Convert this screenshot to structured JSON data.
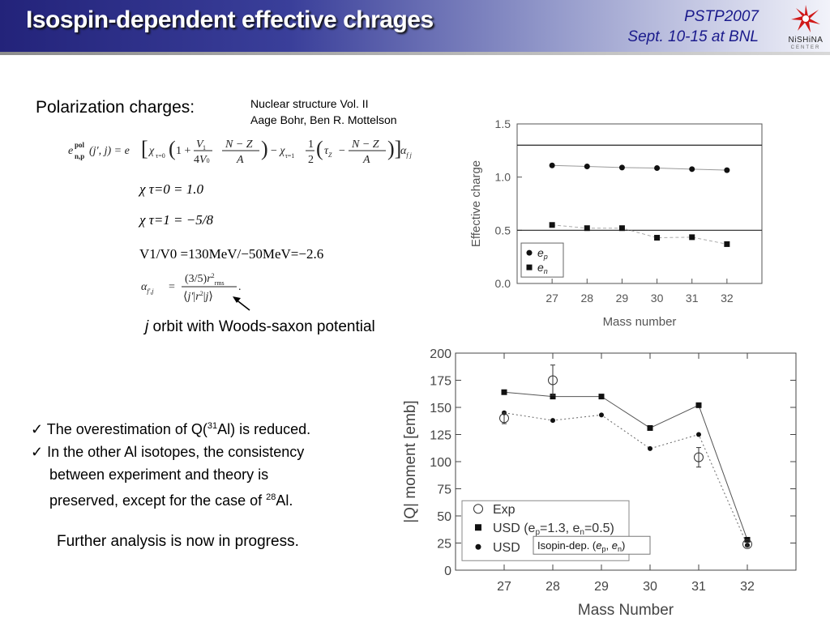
{
  "header": {
    "title": "Isospin-dependent effective chrages",
    "conference": "PSTP2007",
    "dates": "Sept. 10-15 at BNL",
    "logo_text": "NiSHiNA",
    "logo_sub": "CENTER"
  },
  "left": {
    "polarization_label": "Polarization charges:",
    "reference_line1": "Nuclear structure Vol. II",
    "reference_line2": "Aage Bohr, Ben R. Mottelson",
    "eq_chi0": "χ τ=0 = 1.0",
    "eq_chi1": "χ τ=1 = −5/8",
    "eq_v": "V1/V0 =130MeV/−50MeV=−2.6",
    "annotation_italic": "j",
    "annotation_text": " orbit with Woods-saxon potential",
    "bullet1_pre": "The overestimation of Q(",
    "bullet1_sup": "31",
    "bullet1_post": "Al) is reduced.",
    "bullet2_line1": "In the other Al isotopes, the consistency",
    "bullet2_line2": "between experiment and theory is",
    "bullet2_line3_pre": "preserved, except for the case of ",
    "bullet2_sup": "28",
    "bullet2_line3_post": "Al.",
    "further": "Further analysis is now in progress."
  },
  "colors": {
    "header_dark": "#23237a",
    "conference_text": "#1a1a8c",
    "title_text": "#ffffff"
  },
  "chart_data": [
    {
      "type": "scatter",
      "xlabel": "Mass number",
      "ylabel": "Effective charge",
      "x": [
        27,
        28,
        29,
        30,
        31,
        32
      ],
      "xlim": [
        26,
        33
      ],
      "ylim": [
        0.0,
        1.5
      ],
      "yticks": [
        "0.0",
        "0.5",
        "1.0",
        "1.5"
      ],
      "reference_lines": [
        1.3,
        0.5
      ],
      "series": [
        {
          "name": "e_p",
          "marker": "circle",
          "values": [
            1.11,
            1.1,
            1.09,
            1.085,
            1.075,
            1.065
          ]
        },
        {
          "name": "e_n",
          "marker": "square",
          "values": [
            0.55,
            0.52,
            0.52,
            0.43,
            0.435,
            0.37
          ]
        }
      ],
      "legend": [
        "e",
        "e"
      ],
      "legend_subs": [
        "p",
        "n"
      ],
      "legend_position": "bottom-left"
    },
    {
      "type": "line",
      "xlabel": "Mass Number",
      "ylabel": "|Q| moment [emb]",
      "x": [
        27,
        28,
        29,
        30,
        31,
        32
      ],
      "xlim": [
        26,
        33
      ],
      "ylim": [
        0,
        200
      ],
      "yticks": [
        "0",
        "25",
        "50",
        "75",
        "100",
        "125",
        "150",
        "175",
        "200"
      ],
      "series": [
        {
          "name": "Exp",
          "marker": "open-circle",
          "x": [
            27,
            28,
            31,
            32
          ],
          "values": [
            140,
            175,
            104,
            24
          ],
          "errors": [
            5,
            14,
            9,
            2
          ]
        },
        {
          "name": "USD (ep=1.3, en=0.5)",
          "marker": "square",
          "values": [
            164,
            160,
            160,
            131,
            152,
            28
          ]
        },
        {
          "name": "USD",
          "marker": "circle",
          "dashed": true,
          "values": [
            145,
            138,
            143,
            112,
            125,
            23
          ]
        }
      ],
      "legend": [
        "Exp",
        "USD (e",
        "=1.3, e",
        "=0.5)",
        "USD"
      ],
      "legend_subs": [
        "p",
        "n"
      ],
      "inset_label_pre": "Isopin-dep. (",
      "inset_label_e": "e",
      "inset_label_mid": ", ",
      "inset_label_post": ")",
      "legend_position": "bottom-left"
    }
  ]
}
